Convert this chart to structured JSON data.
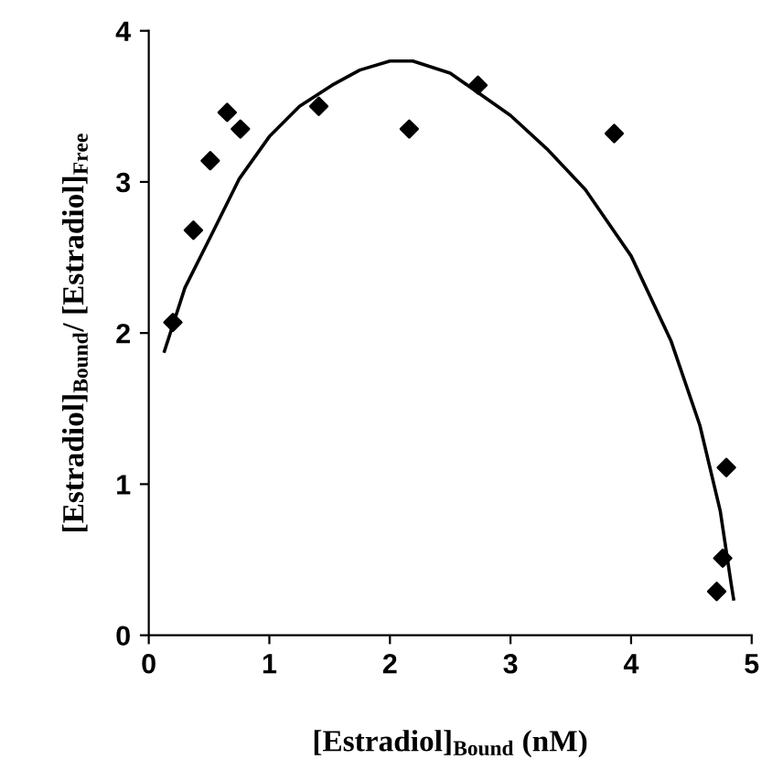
{
  "chart_data": {
    "type": "scatter",
    "xlabel": "[Estradiol]$_{Bound}$ (nM)",
    "ylabel": "[Estradiol]$_{Bound}$/ [Estradiol]$_{Free}$",
    "xlim": [
      0,
      5
    ],
    "xticks": [
      0,
      1,
      2,
      3,
      4,
      5
    ],
    "ylim": [
      0,
      4
    ],
    "yticks": [
      0,
      1,
      2,
      3,
      4
    ],
    "grid": false,
    "legend": false,
    "marker": "diamond",
    "series": [
      {
        "color": "#000000",
        "x": [
          0.2,
          0.37,
          0.51,
          0.65,
          0.76,
          1.41,
          2.16,
          2.73,
          3.86,
          4.71,
          4.76,
          4.79
        ],
        "values": [
          2.07,
          2.68,
          3.14,
          3.46,
          3.35,
          3.5,
          3.35,
          3.64,
          3.32,
          0.29,
          0.51,
          1.11
        ]
      },
      {
        "type": "line",
        "color": "#000000",
        "marker": "none",
        "line_style": "solid",
        "x": [
          0.13,
          0.3,
          0.52,
          0.75,
          1.0,
          1.25,
          1.52,
          1.75,
          2.0,
          2.19,
          2.5,
          3.0,
          3.3,
          3.62,
          4.0,
          4.33,
          4.57,
          4.74,
          4.83,
          4.85
        ],
        "values": [
          1.88,
          2.3,
          2.65,
          3.02,
          3.3,
          3.5,
          3.64,
          3.74,
          3.8,
          3.8,
          3.72,
          3.44,
          3.22,
          2.95,
          2.51,
          1.95,
          1.39,
          0.82,
          0.34,
          0.24
        ]
      }
    ]
  }
}
